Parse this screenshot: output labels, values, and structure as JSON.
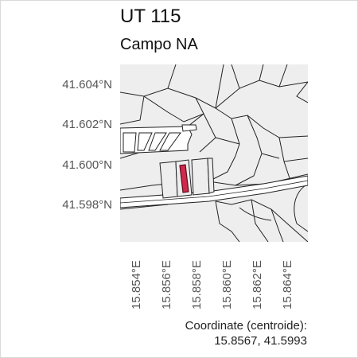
{
  "map": {
    "title": "UT 115",
    "subtitle": "Campo NA",
    "latitude_labels": [
      "41.604°N",
      "41.602°N",
      "41.600°N",
      "41.598°N"
    ],
    "longitude_labels": [
      "15.854°E",
      "15.856°E",
      "15.858°E",
      "15.860°E",
      "15.862°E",
      "15.864°E"
    ],
    "coordinate_label": "Coordinate (centroide):",
    "coordinate_value": "15.8567, 41.5993",
    "colors": {
      "background": "#eeeeee",
      "parcel_outline": "#222222",
      "highlight_fill": "#d1284b",
      "highlight_outline": "#5a0d1c",
      "road_fill": "#ffffff"
    }
  }
}
